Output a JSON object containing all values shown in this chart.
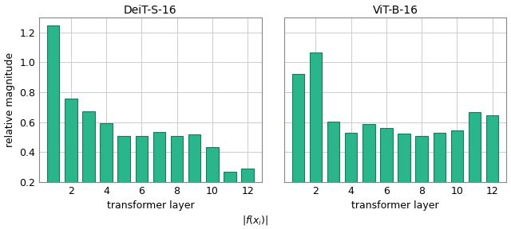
{
  "deit_values": [
    1.25,
    0.76,
    0.67,
    0.59,
    0.51,
    0.51,
    0.535,
    0.51,
    0.52,
    0.435,
    0.27,
    0.29
  ],
  "vit_values": [
    0.92,
    1.065,
    0.605,
    0.53,
    0.585,
    0.56,
    0.525,
    0.51,
    0.53,
    0.545,
    0.665,
    0.645
  ],
  "deit_title": "DeiT-S-16",
  "vit_title": "ViT-B-16",
  "xlabel": "transformer layer",
  "ylabel": "relative magnitude",
  "bar_color": "#2ab58a",
  "bar_edge_color": "#1a7a60",
  "ylim": [
    0.2,
    1.3
  ],
  "yticks": [
    0.2,
    0.4,
    0.6,
    0.8,
    1.0,
    1.2
  ],
  "n_layers": 12,
  "figsize": [
    6.4,
    2.88
  ],
  "dpi": 100,
  "formula": "|f(x_i)|"
}
